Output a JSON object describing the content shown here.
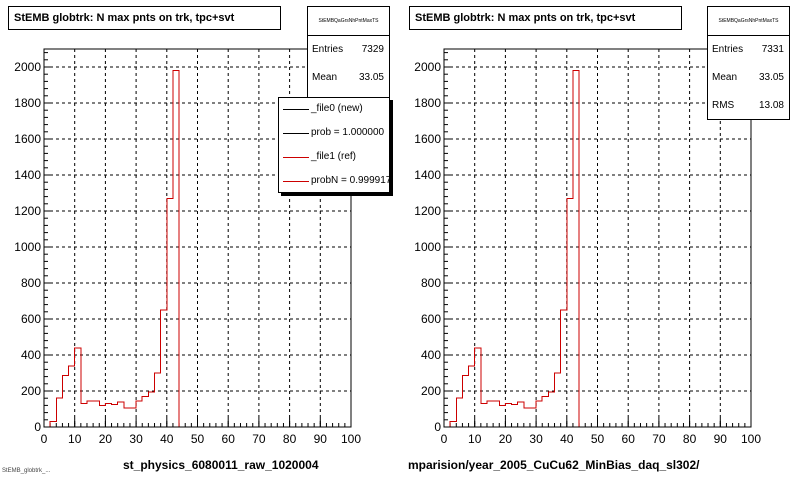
{
  "chart_data": [
    {
      "type": "bar",
      "title": "StEMB globtrk: N max pnts on trk, tpc+svt",
      "xlabel": "st_physics_6080011_raw_1020004",
      "ylabel": "",
      "xlim": [
        0,
        100
      ],
      "ylim": [
        0,
        2100
      ],
      "x_ticks": [
        "0",
        "10",
        "20",
        "30",
        "40",
        "50",
        "60",
        "70",
        "80",
        "90",
        "100"
      ],
      "y_ticks": [
        "0",
        "200",
        "400",
        "600",
        "800",
        "1000",
        "1200",
        "1400",
        "1600",
        "1800",
        "2000"
      ],
      "grid": true,
      "bin_width": 2,
      "x": [
        0,
        2,
        4,
        6,
        8,
        10,
        12,
        14,
        16,
        18,
        20,
        22,
        24,
        26,
        28,
        30,
        32,
        34,
        36,
        38,
        40,
        42,
        44,
        46,
        48
      ],
      "series": [
        {
          "name": "_file0 (new)",
          "color": "#000000",
          "values": [
            0,
            30,
            160,
            285,
            340,
            440,
            130,
            145,
            145,
            120,
            130,
            125,
            140,
            105,
            105,
            145,
            170,
            195,
            300,
            650,
            1270,
            1980,
            0,
            0,
            0
          ]
        },
        {
          "name": "_file1 (ref)",
          "color": "#cc0000",
          "values": [
            0,
            30,
            160,
            285,
            340,
            440,
            130,
            145,
            145,
            120,
            130,
            125,
            140,
            105,
            105,
            145,
            170,
            195,
            300,
            650,
            1270,
            1980,
            0,
            0,
            0
          ]
        }
      ],
      "stats": {
        "name": "StEMBQaGrsNhPntMaxTS",
        "entries": "7329",
        "mean": "33.05"
      },
      "legend": [
        "_file0 (new)",
        "prob = 1.000000",
        "_file1 (ref)",
        "probN = 0.999917"
      ]
    },
    {
      "type": "bar",
      "title": "StEMB globtrk: N max pnts on trk, tpc+svt",
      "xlabel": "mparision/year_2005_CuCu62_MinBias_daq_sl302/",
      "ylabel": "",
      "xlim": [
        0,
        100
      ],
      "ylim": [
        0,
        2100
      ],
      "x_ticks": [
        "0",
        "10",
        "20",
        "30",
        "40",
        "50",
        "60",
        "70",
        "80",
        "90",
        "100"
      ],
      "y_ticks": [
        "0",
        "200",
        "400",
        "600",
        "800",
        "1000",
        "1200",
        "1400",
        "1600",
        "1800",
        "2000"
      ],
      "grid": true,
      "bin_width": 2,
      "x": [
        0,
        2,
        4,
        6,
        8,
        10,
        12,
        14,
        16,
        18,
        20,
        22,
        24,
        26,
        28,
        30,
        32,
        34,
        36,
        38,
        40,
        42,
        44,
        46,
        48
      ],
      "series": [
        {
          "name": "",
          "color": "#cc0000",
          "values": [
            0,
            30,
            160,
            285,
            340,
            440,
            130,
            145,
            145,
            120,
            130,
            125,
            140,
            105,
            105,
            145,
            170,
            195,
            300,
            650,
            1270,
            1980,
            0,
            0,
            0
          ]
        }
      ],
      "stats": {
        "name": "StEMBQaGrsNhPntMaxTS",
        "entries": "7331",
        "mean": "33.05",
        "rms": "13.08"
      }
    }
  ],
  "labels": {
    "entries": "Entries",
    "mean": "Mean",
    "rms": "RMS"
  },
  "footer": "StEMB_globtrk_..."
}
